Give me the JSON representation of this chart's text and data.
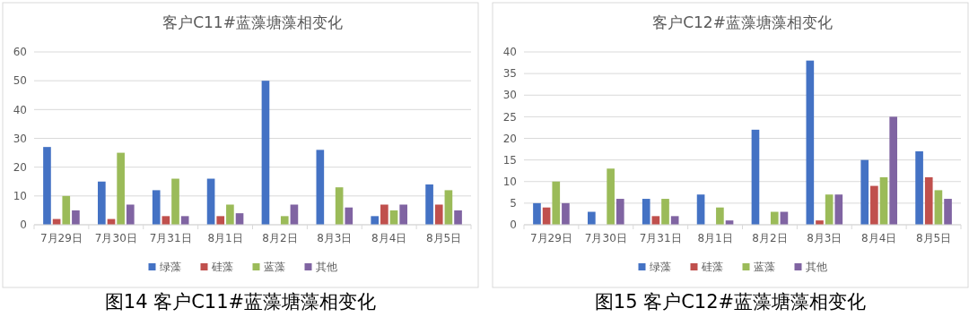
{
  "chart_data": [
    {
      "type": "bar",
      "title": "客户C11#蓝藻塘藻相变化",
      "categories": [
        "7月29日",
        "7月30日",
        "7月31日",
        "8月1日",
        "8月2日",
        "8月3日",
        "8月4日",
        "8月5日"
      ],
      "series": [
        {
          "name": "绿藻",
          "color": "#4472c4",
          "values": [
            27,
            15,
            12,
            16,
            50,
            26,
            3,
            14
          ]
        },
        {
          "name": "硅藻",
          "color": "#c0504d",
          "values": [
            2,
            2,
            3,
            3,
            0,
            0,
            7,
            7
          ]
        },
        {
          "name": "蓝藻",
          "color": "#9bbb59",
          "values": [
            10,
            25,
            16,
            7,
            3,
            13,
            5,
            12
          ]
        },
        {
          "name": "其他",
          "color": "#8064a2",
          "values": [
            5,
            7,
            3,
            4,
            7,
            6,
            7,
            5
          ]
        }
      ],
      "ylim": [
        0,
        60
      ],
      "yticks": [
        0,
        10,
        20,
        30,
        40,
        50,
        60
      ],
      "grid": "y",
      "legend": "bottom",
      "annotations": [
        "图14 客户C11#蓝藻塘藻相变化"
      ]
    },
    {
      "type": "bar",
      "title": "客户C12#蓝藻塘藻相变化",
      "categories": [
        "7月29日",
        "7月30日",
        "7月31日",
        "8月1日",
        "8月2日",
        "8月3日",
        "8月4日",
        "8月5日"
      ],
      "series": [
        {
          "name": "绿藻",
          "color": "#4472c4",
          "values": [
            5,
            3,
            6,
            7,
            22,
            38,
            15,
            17
          ]
        },
        {
          "name": "硅藻",
          "color": "#c0504d",
          "values": [
            4,
            0,
            2,
            0,
            0,
            1,
            9,
            11
          ]
        },
        {
          "name": "蓝藻",
          "color": "#9bbb59",
          "values": [
            10,
            13,
            6,
            4,
            3,
            7,
            11,
            8
          ]
        },
        {
          "name": "其他",
          "color": "#8064a2",
          "values": [
            5,
            6,
            2,
            1,
            3,
            7,
            25,
            6
          ]
        }
      ],
      "ylim": [
        0,
        40
      ],
      "yticks": [
        0,
        5,
        10,
        15,
        20,
        25,
        30,
        35,
        40
      ],
      "grid": "y",
      "legend": "bottom",
      "annotations": [
        "图15 客户C12#蓝藻塘藻相变化"
      ]
    }
  ]
}
